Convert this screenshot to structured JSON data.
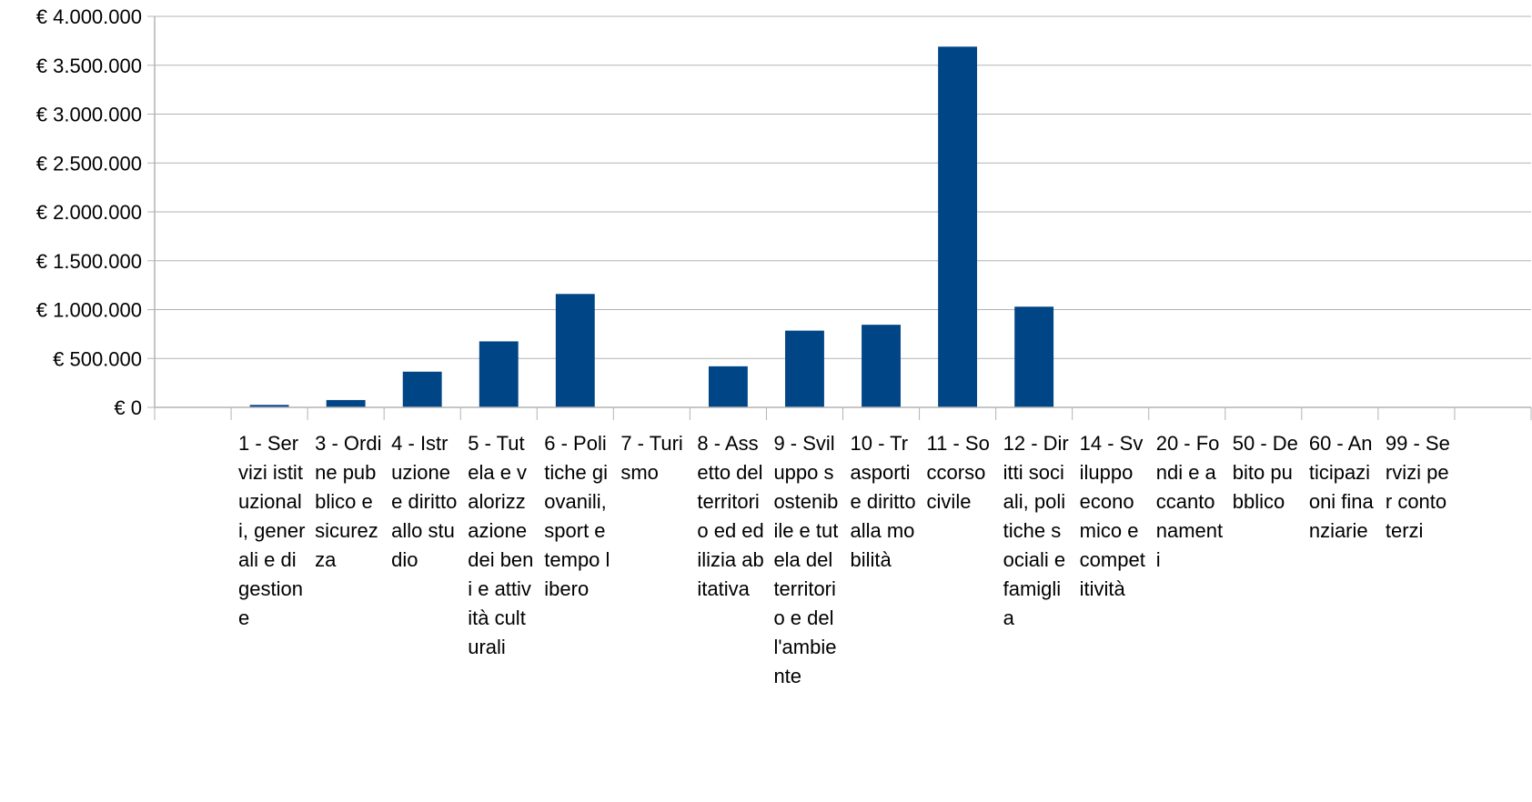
{
  "chart_data": {
    "type": "bar",
    "title": "",
    "xlabel": "",
    "ylabel": "",
    "ylim": [
      0,
      4000000
    ],
    "grid": true,
    "legend": "none",
    "y_ticks": [
      {
        "value": 0,
        "label": "€ 0"
      },
      {
        "value": 500000,
        "label": "€ 500.000"
      },
      {
        "value": 1000000,
        "label": "€ 1.000.000"
      },
      {
        "value": 1500000,
        "label": "€ 1.500.000"
      },
      {
        "value": 2000000,
        "label": "€ 2.000.000"
      },
      {
        "value": 2500000,
        "label": "€ 2.500.000"
      },
      {
        "value": 3000000,
        "label": "€ 3.000.000"
      },
      {
        "value": 3500000,
        "label": "€ 3.500.000"
      },
      {
        "value": 4000000,
        "label": "€ 4.000.000"
      }
    ],
    "categories": [
      "1 - Servizi istituzionali, generali e di gestione",
      "3 - Ordine pubblico e sicurezza",
      "4 - Istruzione e diritto allo studio",
      "5 - Tutela e valorizzazione dei beni e attività culturali",
      "6 - Politiche giovanili, sport e tempo libero",
      "7 - Turismo",
      "8 - Assetto del territorio ed edilizia abitativa",
      "9 - Sviluppo sostenibile e tutela del territorio e dell'ambiente",
      "10 - Trasporti e diritto alla mobilità",
      "11 - Soccorso civile",
      "12 - Diritti sociali, politiche sociali e famiglia",
      "14 - Sviluppo economico e competitività",
      "20 - Fondi e accantonamenti",
      "50 - Debito pubblico",
      "60 - Anticipazioni finanziarie",
      "99 - Servizi per conto terzi"
    ],
    "values": [
      25000,
      75000,
      365000,
      675000,
      1160000,
      0,
      420000,
      785000,
      845000,
      3690000,
      1030000,
      0,
      0,
      0,
      0,
      0
    ],
    "colors": {
      "bar": "#004586",
      "grid": "#b3b3b3",
      "axis": "#b3b3b3"
    }
  }
}
